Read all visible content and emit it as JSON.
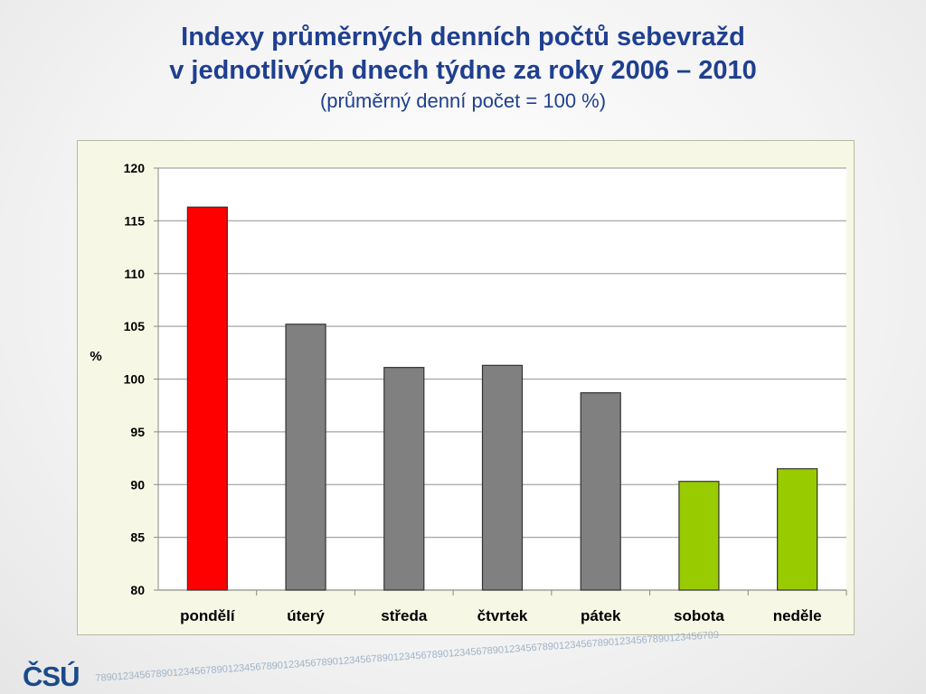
{
  "title_line1": "Indexy průměrných denních počtů sebevražd",
  "title_line2": "v jednotlivých dnech týdne za roky 2006 – 2010",
  "subtitle": "(průměrný denní počet = 100 %)",
  "logo": "ČSÚ",
  "decor_digits": "78901234567890123456789012345678901234567890123456789012345678901234567890123456789012345678901234567890123456789",
  "chart_data": {
    "type": "bar",
    "title": "Indexy průměrných denních počtů sebevražd v jednotlivých dnech týdne za roky 2006 – 2010",
    "xlabel": "",
    "ylabel": "%",
    "ylim": [
      80,
      120
    ],
    "yticks": [
      80,
      85,
      90,
      95,
      100,
      105,
      110,
      115,
      120
    ],
    "grid": true,
    "categories": [
      "pondělí",
      "úterý",
      "středa",
      "čtvrtek",
      "pátek",
      "sobota",
      "neděle"
    ],
    "values": [
      116.3,
      105.2,
      101.1,
      101.3,
      98.7,
      90.3,
      91.5
    ],
    "colors": [
      "#ff0000",
      "#808080",
      "#808080",
      "#808080",
      "#808080",
      "#99cc00",
      "#99cc00"
    ]
  }
}
